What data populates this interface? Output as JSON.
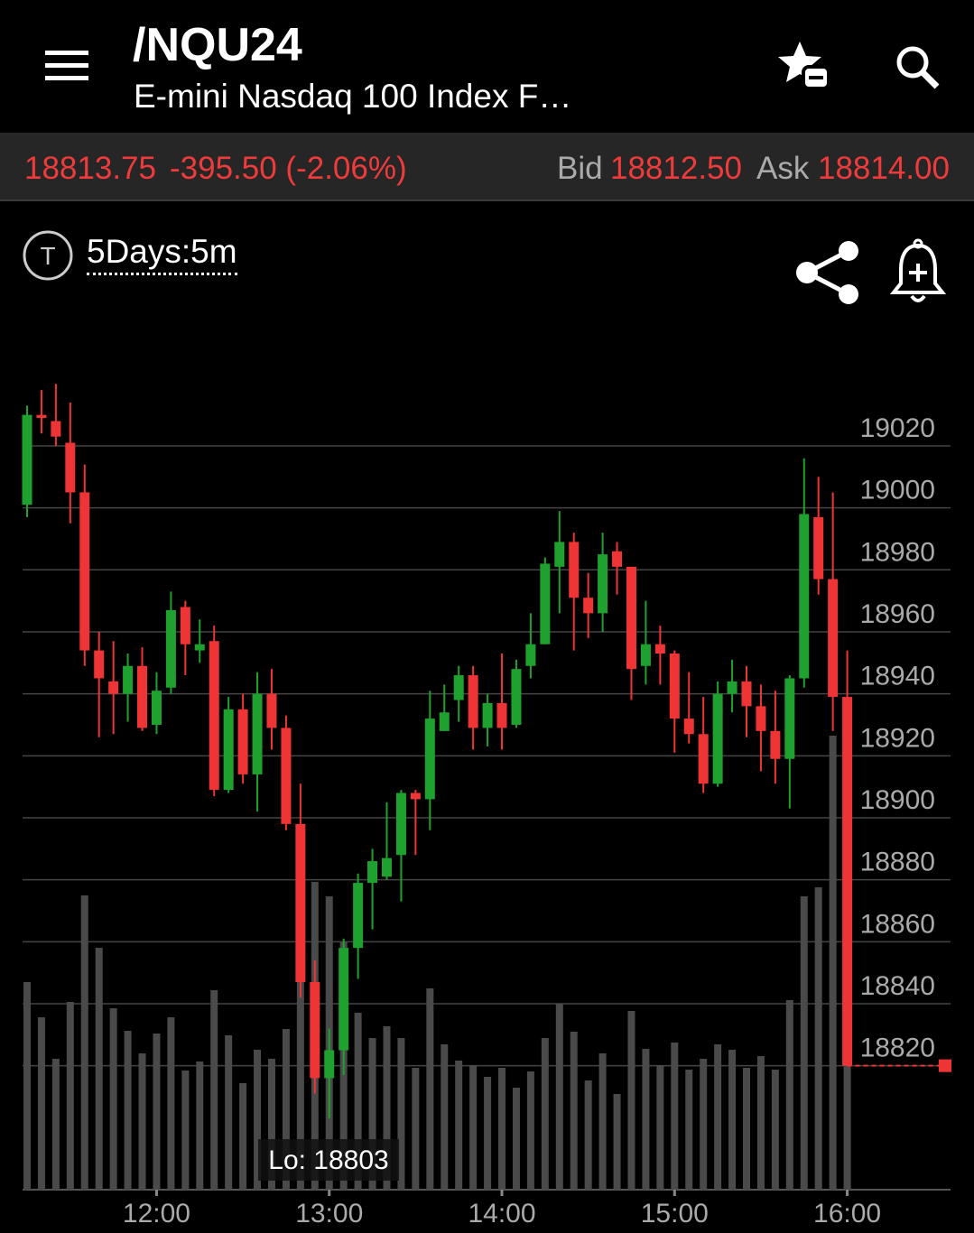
{
  "header": {
    "symbol": "/NQU24",
    "name": "E-mini Nasdaq 100 Index F…"
  },
  "quote": {
    "last": "18813.75",
    "change": "-395.50 (-2.06%)",
    "bid_label": "Bid",
    "bid": "18812.50",
    "ask_label": "Ask",
    "ask": "18814.00"
  },
  "toolbar": {
    "icon": "T",
    "period": "5Days:5m"
  },
  "chart_data": {
    "type": "candlestick",
    "categories": [
      null,
      null,
      null,
      null,
      null,
      null,
      null,
      null,
      null,
      "12:00",
      null,
      null,
      null,
      null,
      null,
      null,
      null,
      null,
      null,
      null,
      null,
      "13:00",
      null,
      null,
      null,
      null,
      null,
      null,
      null,
      null,
      null,
      null,
      null,
      "14:00",
      null,
      null,
      null,
      null,
      null,
      null,
      null,
      null,
      null,
      null,
      null,
      "15:00",
      null,
      null,
      null,
      null,
      null,
      null,
      null,
      null,
      null,
      null,
      null,
      "16:00"
    ],
    "open": [
      19001,
      19030,
      19028,
      19021,
      19005,
      18954,
      18944,
      18940,
      18949,
      18930,
      18942,
      18968,
      18954,
      18957,
      18909,
      18935,
      18914,
      18940,
      18929,
      18898,
      18847,
      18816,
      18825,
      18858,
      18879,
      18881,
      18888,
      18908,
      18906,
      18928,
      18938,
      18946,
      18929,
      18937,
      18930,
      18949,
      18956,
      18981,
      18989,
      18971,
      18966,
      18986,
      18981,
      18949,
      18956,
      18953,
      18932,
      18927,
      18911,
      18940,
      18944,
      18936,
      18928,
      18919,
      18945,
      18997,
      18977,
      18939
    ],
    "high": [
      19033,
      19038,
      19040,
      19034,
      19014,
      18960,
      18957,
      18953,
      18955,
      18947,
      18973,
      18970,
      18964,
      18962,
      18939,
      18940,
      18947,
      18948,
      18933,
      18911,
      18854,
      18832,
      18861,
      18882,
      18890,
      18905,
      18909,
      18909,
      18941,
      18943,
      18949,
      18949,
      18940,
      18953,
      18951,
      18966,
      18984,
      18999,
      18992,
      18979,
      18992,
      18989,
      18981,
      18970,
      18962,
      18954,
      18947,
      18939,
      18944,
      18951,
      18949,
      18943,
      18941,
      18946,
      19016,
      19010,
      19005,
      18954
    ],
    "low": [
      18997,
      19024,
      19020,
      18995,
      18949,
      18926,
      18927,
      18931,
      18928,
      18927,
      18940,
      18946,
      18950,
      18907,
      18908,
      18911,
      18902,
      18922,
      18896,
      18842,
      18811,
      18803,
      18817,
      18848,
      18864,
      18880,
      18873,
      18888,
      18896,
      18928,
      18931,
      18922,
      18923,
      18922,
      18929,
      18945,
      18956,
      18966,
      18954,
      18958,
      18960,
      18972,
      18938,
      18943,
      18943,
      18921,
      18924,
      18908,
      18910,
      18934,
      18926,
      18915,
      18911,
      18903,
      18942,
      18972,
      18928,
      18820
    ],
    "close": [
      19030,
      19029,
      19023,
      19005,
      18954,
      18945,
      18940,
      18949,
      18929,
      18941,
      18967,
      18956,
      18956,
      18909,
      18935,
      18914,
      18940,
      18929,
      18898,
      18847,
      18816,
      18825,
      18858,
      18879,
      18886,
      18887,
      18908,
      18906,
      18932,
      18934,
      18946,
      18929,
      18937,
      18929,
      18948,
      18956,
      18982,
      18989,
      18971,
      18966,
      18985,
      18981,
      18948,
      18956,
      18953,
      18932,
      18927,
      18911,
      18940,
      18944,
      18936,
      18928,
      18919,
      18945,
      18998,
      18977,
      18939,
      18820
    ],
    "volume": [
      230,
      191,
      145,
      208,
      326,
      268,
      201,
      176,
      151,
      173,
      191,
      132,
      142,
      221,
      171,
      118,
      155,
      145,
      178,
      278,
      341,
      325,
      275,
      196,
      168,
      181,
      168,
      135,
      223,
      161,
      143,
      138,
      125,
      135,
      113,
      131,
      168,
      206,
      175,
      121,
      151,
      106,
      198,
      156,
      138,
      163,
      133,
      145,
      161,
      155,
      135,
      148,
      133,
      210,
      325,
      335,
      503,
      138
    ],
    "up_color": "#1fa12f",
    "down_color": "#ee3434",
    "volume_color": "#4a4a4a",
    "ylim": [
      18780,
      19043
    ],
    "yticks": [
      18820,
      18840,
      18860,
      18880,
      18900,
      18920,
      18940,
      18960,
      18980,
      19000,
      19020
    ],
    "xticks": [
      "12:00",
      "13:00",
      "14:00",
      "15:00",
      "16:00"
    ],
    "grid": true,
    "annotation": "Lo: 18803"
  }
}
